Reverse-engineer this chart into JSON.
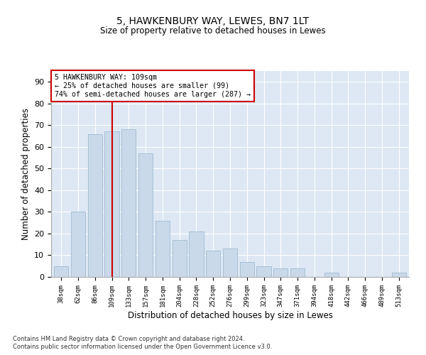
{
  "title1": "5, HAWKENBURY WAY, LEWES, BN7 1LT",
  "title2": "Size of property relative to detached houses in Lewes",
  "xlabel": "Distribution of detached houses by size in Lewes",
  "ylabel": "Number of detached properties",
  "categories": [
    "38sqm",
    "62sqm",
    "86sqm",
    "109sqm",
    "133sqm",
    "157sqm",
    "181sqm",
    "204sqm",
    "228sqm",
    "252sqm",
    "276sqm",
    "299sqm",
    "323sqm",
    "347sqm",
    "371sqm",
    "394sqm",
    "418sqm",
    "442sqm",
    "466sqm",
    "489sqm",
    "513sqm"
  ],
  "values": [
    5,
    30,
    66,
    67,
    68,
    57,
    26,
    17,
    21,
    12,
    13,
    7,
    5,
    4,
    4,
    0,
    2,
    0,
    0,
    0,
    2
  ],
  "bar_color": "#c9d9ea",
  "bar_edge_color": "#a8bfd4",
  "redline_index": 3,
  "annotation_line1": "5 HAWKENBURY WAY: 109sqm",
  "annotation_line2": "← 25% of detached houses are smaller (99)",
  "annotation_line3": "74% of semi-detached houses are larger (287) →",
  "annotation_box_color": "#ffffff",
  "annotation_box_edge": "#cc0000",
  "redline_color": "#cc0000",
  "ylim": [
    0,
    95
  ],
  "yticks": [
    0,
    10,
    20,
    30,
    40,
    50,
    60,
    70,
    80,
    90
  ],
  "footnote1": "Contains HM Land Registry data © Crown copyright and database right 2024.",
  "footnote2": "Contains public sector information licensed under the Open Government Licence v3.0.",
  "bg_color": "#dde8f4",
  "fig_bg_color": "#ffffff"
}
